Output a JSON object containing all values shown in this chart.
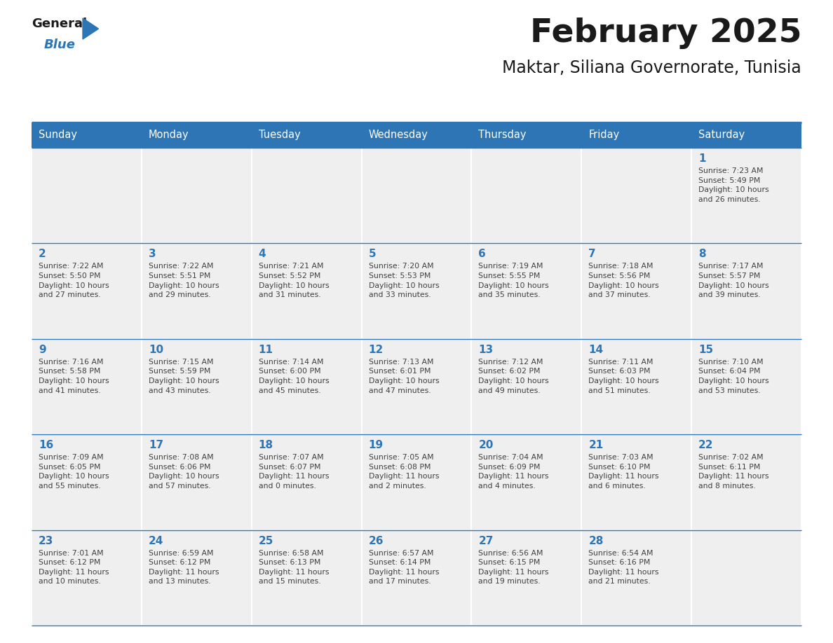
{
  "title": "February 2025",
  "subtitle": "Maktar, Siliana Governorate, Tunisia",
  "header_bg_color": "#2E75B6",
  "header_text_color": "#FFFFFF",
  "cell_bg_even": "#EFEFEF",
  "cell_bg_odd": "#EFEFEF",
  "day_number_color": "#2E75B6",
  "text_color": "#404040",
  "line_color": "#2E75B6",
  "border_color": "#2E75B6",
  "days_of_week": [
    "Sunday",
    "Monday",
    "Tuesday",
    "Wednesday",
    "Thursday",
    "Friday",
    "Saturday"
  ],
  "weeks": [
    [
      {
        "day": null,
        "info": null
      },
      {
        "day": null,
        "info": null
      },
      {
        "day": null,
        "info": null
      },
      {
        "day": null,
        "info": null
      },
      {
        "day": null,
        "info": null
      },
      {
        "day": null,
        "info": null
      },
      {
        "day": "1",
        "info": "Sunrise: 7:23 AM\nSunset: 5:49 PM\nDaylight: 10 hours\nand 26 minutes."
      }
    ],
    [
      {
        "day": "2",
        "info": "Sunrise: 7:22 AM\nSunset: 5:50 PM\nDaylight: 10 hours\nand 27 minutes."
      },
      {
        "day": "3",
        "info": "Sunrise: 7:22 AM\nSunset: 5:51 PM\nDaylight: 10 hours\nand 29 minutes."
      },
      {
        "day": "4",
        "info": "Sunrise: 7:21 AM\nSunset: 5:52 PM\nDaylight: 10 hours\nand 31 minutes."
      },
      {
        "day": "5",
        "info": "Sunrise: 7:20 AM\nSunset: 5:53 PM\nDaylight: 10 hours\nand 33 minutes."
      },
      {
        "day": "6",
        "info": "Sunrise: 7:19 AM\nSunset: 5:55 PM\nDaylight: 10 hours\nand 35 minutes."
      },
      {
        "day": "7",
        "info": "Sunrise: 7:18 AM\nSunset: 5:56 PM\nDaylight: 10 hours\nand 37 minutes."
      },
      {
        "day": "8",
        "info": "Sunrise: 7:17 AM\nSunset: 5:57 PM\nDaylight: 10 hours\nand 39 minutes."
      }
    ],
    [
      {
        "day": "9",
        "info": "Sunrise: 7:16 AM\nSunset: 5:58 PM\nDaylight: 10 hours\nand 41 minutes."
      },
      {
        "day": "10",
        "info": "Sunrise: 7:15 AM\nSunset: 5:59 PM\nDaylight: 10 hours\nand 43 minutes."
      },
      {
        "day": "11",
        "info": "Sunrise: 7:14 AM\nSunset: 6:00 PM\nDaylight: 10 hours\nand 45 minutes."
      },
      {
        "day": "12",
        "info": "Sunrise: 7:13 AM\nSunset: 6:01 PM\nDaylight: 10 hours\nand 47 minutes."
      },
      {
        "day": "13",
        "info": "Sunrise: 7:12 AM\nSunset: 6:02 PM\nDaylight: 10 hours\nand 49 minutes."
      },
      {
        "day": "14",
        "info": "Sunrise: 7:11 AM\nSunset: 6:03 PM\nDaylight: 10 hours\nand 51 minutes."
      },
      {
        "day": "15",
        "info": "Sunrise: 7:10 AM\nSunset: 6:04 PM\nDaylight: 10 hours\nand 53 minutes."
      }
    ],
    [
      {
        "day": "16",
        "info": "Sunrise: 7:09 AM\nSunset: 6:05 PM\nDaylight: 10 hours\nand 55 minutes."
      },
      {
        "day": "17",
        "info": "Sunrise: 7:08 AM\nSunset: 6:06 PM\nDaylight: 10 hours\nand 57 minutes."
      },
      {
        "day": "18",
        "info": "Sunrise: 7:07 AM\nSunset: 6:07 PM\nDaylight: 11 hours\nand 0 minutes."
      },
      {
        "day": "19",
        "info": "Sunrise: 7:05 AM\nSunset: 6:08 PM\nDaylight: 11 hours\nand 2 minutes."
      },
      {
        "day": "20",
        "info": "Sunrise: 7:04 AM\nSunset: 6:09 PM\nDaylight: 11 hours\nand 4 minutes."
      },
      {
        "day": "21",
        "info": "Sunrise: 7:03 AM\nSunset: 6:10 PM\nDaylight: 11 hours\nand 6 minutes."
      },
      {
        "day": "22",
        "info": "Sunrise: 7:02 AM\nSunset: 6:11 PM\nDaylight: 11 hours\nand 8 minutes."
      }
    ],
    [
      {
        "day": "23",
        "info": "Sunrise: 7:01 AM\nSunset: 6:12 PM\nDaylight: 11 hours\nand 10 minutes."
      },
      {
        "day": "24",
        "info": "Sunrise: 6:59 AM\nSunset: 6:12 PM\nDaylight: 11 hours\nand 13 minutes."
      },
      {
        "day": "25",
        "info": "Sunrise: 6:58 AM\nSunset: 6:13 PM\nDaylight: 11 hours\nand 15 minutes."
      },
      {
        "day": "26",
        "info": "Sunrise: 6:57 AM\nSunset: 6:14 PM\nDaylight: 11 hours\nand 17 minutes."
      },
      {
        "day": "27",
        "info": "Sunrise: 6:56 AM\nSunset: 6:15 PM\nDaylight: 11 hours\nand 19 minutes."
      },
      {
        "day": "28",
        "info": "Sunrise: 6:54 AM\nSunset: 6:16 PM\nDaylight: 11 hours\nand 21 minutes."
      },
      {
        "day": null,
        "info": null
      }
    ]
  ]
}
